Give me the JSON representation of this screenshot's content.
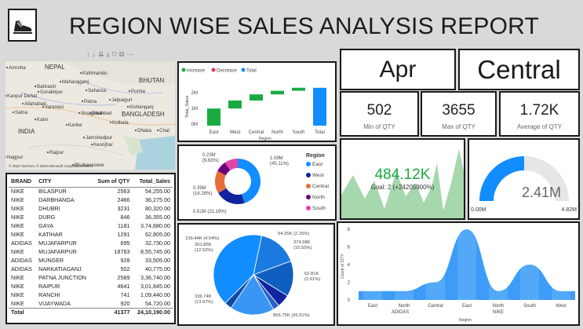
{
  "header": {
    "title": "REGION WISE SALES ANALYSIS REPORT"
  },
  "map": {
    "labels": [
      "Amroha",
      "NEPAL",
      "Kathmandu",
      "Maharajganj",
      "BHUTAN",
      "Bahraich",
      "Saharsa",
      "Kanpur Dehat",
      "Gorakhpur",
      "Purnia",
      "Allahabad",
      "Patna",
      "Jalpaiguri",
      "Varanasi",
      "Kishanganj",
      "Satna",
      "Katni",
      "Sinagrauli",
      "Dhanbad",
      "BANGLADESH",
      "Kanke",
      "Kolkata",
      "INDIA",
      "Dhaka",
      "Chat",
      "Jamshedpur",
      "Keonjhar",
      "Nagpur",
      "Raipur",
      "Bhubaneswar"
    ],
    "copyright": "© 2023 TomTom, © 2023 Microsoft Corporation Terms"
  },
  "sales_table": {
    "columns": [
      "BRAND",
      "CITY",
      "Sum of QTY",
      "Total_Sales"
    ],
    "rows": [
      [
        "NIKE",
        "BILASPUR",
        "2563",
        "54,255.00"
      ],
      [
        "NIKE",
        "DARBHANGA",
        "2466",
        "36,275.00"
      ],
      [
        "NIKE",
        "DHUBRI",
        "3231",
        "80,320.00"
      ],
      [
        "NIKE",
        "DURG",
        "846",
        "36,355.00"
      ],
      [
        "NIKE",
        "GAYA",
        "1181",
        "3,74,680.00"
      ],
      [
        "NIKE",
        "KATIHAR",
        "1291",
        "62,805.00"
      ],
      [
        "ADIDAS",
        "MUJAFARPUR",
        "695",
        "32,730.00"
      ],
      [
        "NIKE",
        "MUJAFARPUR",
        "18783",
        "8,55,745.00"
      ],
      [
        "ADIDAS",
        "MUNGER",
        "928",
        "33,505.00"
      ],
      [
        "ADIDAS",
        "NARKATIAGANJ",
        "502",
        "40,775.00"
      ],
      [
        "NIKE",
        "PATNA JUNCTION",
        "2589",
        "3,36,740.00"
      ],
      [
        "NIKE",
        "RAIPUR",
        "4641",
        "3,01,845.00"
      ],
      [
        "NIKE",
        "RANCHI",
        "741",
        "1,09,440.00"
      ],
      [
        "NIKE",
        "VIJAYWADA",
        "920",
        "54,720.00"
      ]
    ],
    "total": [
      "Total",
      "",
      "41377",
      "24,10,190.00"
    ]
  },
  "waterfall": {
    "legend": [
      "Increase",
      "Decrease",
      "Total"
    ],
    "ylabel": "Total_Sales",
    "xlabel": "Region",
    "yticks": [
      "2M",
      "1M",
      "0M"
    ],
    "categories": [
      "East",
      "West",
      "Central",
      "North",
      "South",
      "Total"
    ]
  },
  "donut": {
    "legend_title": "Region",
    "legend": [
      "East",
      "West",
      "Central",
      "North",
      "South"
    ],
    "labels": {
      "top": "0.23M\n(9.63%)",
      "left": "0.39M\n(16.28%)",
      "bottom": "0.51M (21.19%)",
      "right": "1.09M\n(45.11%)"
    }
  },
  "pie": {
    "labels": [
      "109.44K (4.54%)",
      "54.26K (2.25%)",
      "301.85K\n(12.52%)",
      "374.68K\n(15.55%)",
      "62.81K\n(2.61%)",
      "336.74K\n(13.97%)",
      "855.75K (35.51%)"
    ]
  },
  "kpis": {
    "month": "Apr",
    "region": "Central",
    "min_qty": {
      "value": "502",
      "label": "Min of QTY"
    },
    "max_qty": {
      "value": "3655",
      "label": "Max of QTY"
    },
    "avg_qty": {
      "value": "1.72K",
      "label": "Average of QTY"
    }
  },
  "kpi_trend": {
    "value": "484.12K",
    "goal": "Goal: 2 (+24205900%)"
  },
  "gauge": {
    "value": "2.41M",
    "min": "0.00M",
    "max": "4.82M",
    "fill_fraction": 0.5
  },
  "area_chart": {
    "ylabel": "Count of CITY",
    "xlabel": "Region",
    "yticks": [
      "8",
      "6",
      "4",
      "2",
      "0"
    ],
    "x_labels": [
      "East",
      "North",
      "Central",
      "East",
      "North",
      "South",
      "West"
    ],
    "groups": [
      "ADIDAS",
      "NIKE"
    ]
  },
  "colors": {
    "blue": "#118dff",
    "navy": "#12239e",
    "orange": "#e66c37",
    "purple": "#6b007b",
    "pink": "#e044a7",
    "green": "#1aab40",
    "area": "#a7d7ac"
  }
}
